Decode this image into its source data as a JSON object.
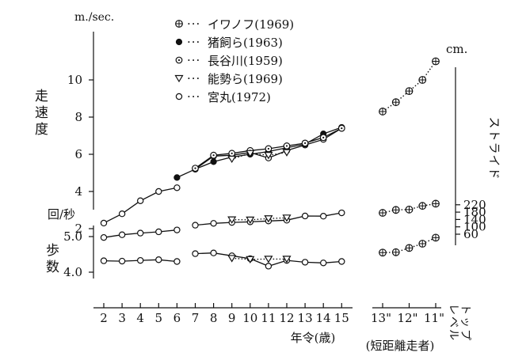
{
  "chart_data": {
    "type": "line",
    "legend": {
      "placement": "top-center",
      "entries": [
        {
          "marker": "circle-plus",
          "label": "イワノフ(1969)"
        },
        {
          "marker": "filled-circle",
          "label": "猪飼ら(1963)"
        },
        {
          "marker": "dotted-circle",
          "label": "長谷川(1959)"
        },
        {
          "marker": "triangle-down",
          "label": "能勢ら(1969)"
        },
        {
          "marker": "open-circle",
          "label": "宮丸(1972)"
        }
      ]
    },
    "axes": {
      "speed": {
        "unit": "m./sec.",
        "label": [
          "走",
          "速",
          "度"
        ],
        "range": [
          1,
          11
        ],
        "ticks": [
          2,
          4,
          6,
          8,
          10
        ]
      },
      "pitch": {
        "unit_label": "回/秒",
        "label": [
          "歩",
          "数"
        ],
        "range": [
          3.8,
          5.2
        ],
        "ticks": [
          4.0,
          5.0
        ],
        "tick_labels": [
          "4.0",
          "5.0"
        ]
      },
      "stride": {
        "unit": "cm.",
        "label": "ストライド",
        "range": [
          40,
          260
        ],
        "ticks": [
          60,
          100,
          140,
          180,
          220
        ]
      },
      "age": {
        "label": "年令(歳)",
        "range": [
          1.5,
          15.7
        ],
        "ticks": [
          2,
          3,
          4,
          5,
          6,
          7,
          8,
          9,
          10,
          11,
          12,
          13,
          14,
          15
        ]
      },
      "elite": {
        "tick_labels": [
          "13\"",
          "12\"",
          "11\""
        ],
        "label_vertical": "トップレベル",
        "sublabel": "(短距離走者)"
      }
    },
    "series": [
      {
        "name": "イワノフ(1969)",
        "marker": "circle-plus",
        "line": "dotted",
        "axis": "speed",
        "x": [
          13,
          12.5,
          12,
          11.5,
          11
        ],
        "y": [
          8.3,
          8.8,
          9.4,
          10.0,
          11.0
        ]
      },
      {
        "name": "イワノフ(1969)",
        "marker": "circle-plus",
        "line": "dotted",
        "axis": "stride",
        "x": [
          13,
          12.5,
          12,
          11.5,
          11
        ],
        "y": [
          176,
          192,
          194,
          214,
          226
        ]
      },
      {
        "name": "イワノフ(1969)",
        "marker": "circle-plus",
        "line": "dotted",
        "axis": "pitch",
        "x": [
          13,
          12.5,
          12,
          11.5,
          11
        ],
        "y": [
          4.55,
          4.56,
          4.68,
          4.8,
          4.97
        ]
      },
      {
        "name": "猪飼ら(1963)",
        "marker": "filled-circle",
        "line": "solid",
        "axis": "speed",
        "x": [
          6,
          7,
          8,
          9,
          10,
          11,
          12,
          13,
          14,
          15
        ],
        "y": [
          4.75,
          5.2,
          5.6,
          5.85,
          6.0,
          6.15,
          6.35,
          6.55,
          7.1,
          7.45
        ]
      },
      {
        "name": "長谷川(1959)",
        "marker": "dotted-circle",
        "line": "solid",
        "axis": "speed",
        "x": [
          7,
          8,
          9,
          10,
          11,
          12,
          13,
          14,
          15
        ],
        "y": [
          5.25,
          5.95,
          6.05,
          6.2,
          6.3,
          6.45,
          6.6,
          6.9,
          7.4
        ]
      },
      {
        "name": "能勢ら(1969)",
        "marker": "triangle-down",
        "line": "dotted",
        "axis": "speed",
        "x": [
          9,
          10,
          11,
          12
        ],
        "y": [
          5.75,
          6.05,
          5.95,
          6.1
        ]
      },
      {
        "name": "能勢ら(1969)",
        "marker": "triangle-down",
        "line": "dotted",
        "axis": "stride",
        "x": [
          9,
          10,
          11,
          12
        ],
        "y": [
          139,
          138,
          145,
          149
        ]
      },
      {
        "name": "能勢ら(1969)",
        "marker": "triangle-down",
        "line": "dotted",
        "axis": "pitch",
        "x": [
          9,
          10,
          11,
          12
        ],
        "y": [
          4.39,
          4.36,
          4.37,
          4.37
        ]
      },
      {
        "name": "宮丸(1972)",
        "marker": "open-circle",
        "line": "solid",
        "axis": "speed",
        "x": [
          2,
          3,
          4,
          5,
          6,
          7,
          8,
          9,
          10,
          11,
          12,
          13,
          14,
          15
        ],
        "y": [
          2.3,
          2.8,
          3.5,
          4.0,
          4.2,
          5.2,
          5.9,
          5.95,
          6.1,
          5.8,
          6.2,
          6.5,
          6.8,
          7.4
        ]
      },
      {
        "name": "宮丸(1972)",
        "marker": "open-circle",
        "line": "solid",
        "axis": "stride",
        "x": [
          2,
          3,
          4,
          5,
          6,
          7,
          8,
          9,
          10,
          11,
          12,
          13,
          14,
          15
        ],
        "y": [
          42,
          57,
          66,
          73,
          83,
          109,
          119,
          124,
          127,
          132,
          136,
          159,
          158,
          176
        ]
      },
      {
        "name": "宮丸(1972)",
        "marker": "open-circle",
        "line": "solid",
        "axis": "pitch",
        "x": [
          2,
          3,
          4,
          5,
          6,
          7,
          8,
          9,
          10,
          11,
          12,
          13,
          14,
          15
        ],
        "y": [
          4.32,
          4.31,
          4.33,
          4.35,
          4.3,
          4.52,
          4.54,
          4.46,
          4.38,
          4.17,
          4.33,
          4.28,
          4.26,
          4.3
        ]
      }
    ]
  }
}
